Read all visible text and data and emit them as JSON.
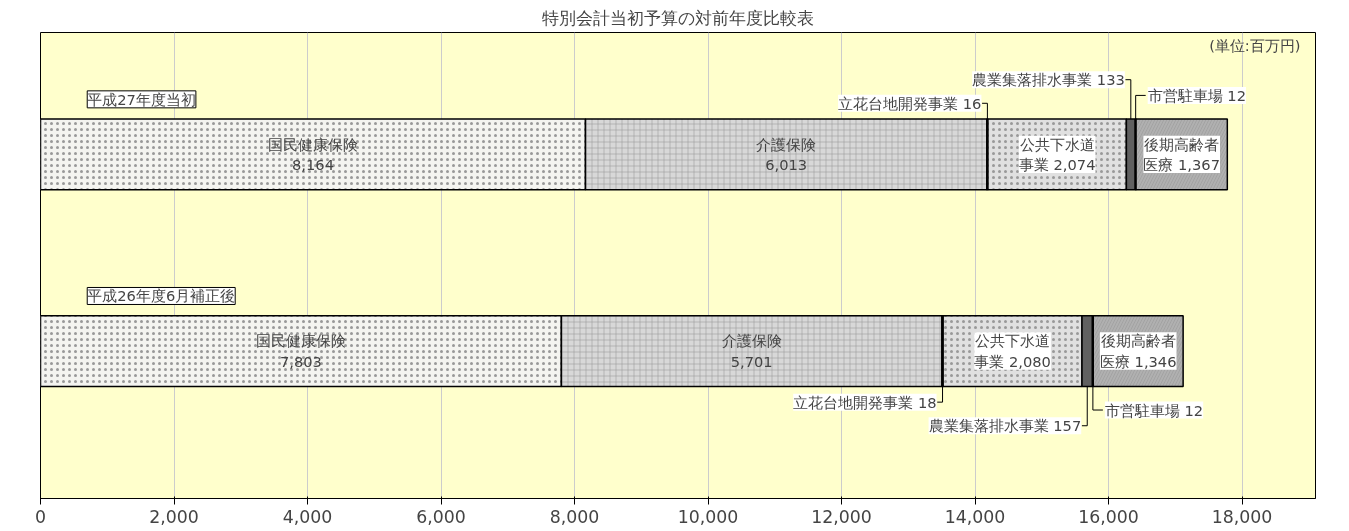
{
  "chart_data": {
    "type": "bar",
    "orientation": "horizontal",
    "stacked": true,
    "title": "特別会計当初予算の対前年度比較表",
    "categories": [
      "平成27年度当初",
      "平成26年度6月補正後"
    ],
    "series": [
      {
        "color": "#f4f4f0",
        "values": [
          8164,
          7803
        ],
        "value_labels": [
          "国民健康保険\n8,164",
          "国民健康保険\n7,803"
        ]
      },
      {
        "color": "#d8d8d8",
        "values": [
          6013,
          5701
        ],
        "value_labels": [
          "介護保険\n6,013",
          "介護保険\n5,701"
        ]
      },
      {
        "color": "#404040",
        "values": [
          16,
          18
        ],
        "value_labels": [
          "立花台地開発事業 16",
          "立花台地開発事業 18"
        ]
      },
      {
        "color": "#e0e0e0",
        "values": [
          2074,
          2080
        ],
        "value_labels": [
          "公共下水道事業 2,074",
          "公共下水道事業 2,080"
        ]
      },
      {
        "color": "#606060",
        "values": [
          133,
          157
        ],
        "value_labels": [
          "農業集落排水事業 133",
          "農業集落排水事業 157"
        ]
      },
      {
        "color": "#202020",
        "values": [
          12,
          12
        ],
        "value_labels": [
          "市営駐車場 12",
          "市営駐車場 12"
        ]
      },
      {
        "color": "#b0b0b0",
        "values": [
          1367,
          1346
        ],
        "value_labels": [
          "後期高齢者医療 1,367",
          "後期高齢者医療 1,346"
        ]
      }
    ],
    "xlim": [
      0,
      19100
    ],
    "xticks": [
      0,
      {
        "value": 2000,
        "label": "2,000"
      },
      {
        "value": 4000,
        "label": "4,000"
      },
      {
        "value": 6000,
        "label": "6,000"
      },
      {
        "value": 8000,
        "label": "8,000"
      },
      {
        "value": 10000,
        "label": "10,000"
      },
      {
        "value": 12000,
        "label": "12,000"
      },
      {
        "value": 14000,
        "label": "14,000"
      },
      {
        "value": 16000,
        "label": "16,000"
      },
      {
        "value": 18000,
        "label": "18,000"
      }
    ],
    "annotations": [
      "(単位:百万円)"
    ],
    "grid": "x",
    "legend": false,
    "tick_labels": "x"
  }
}
